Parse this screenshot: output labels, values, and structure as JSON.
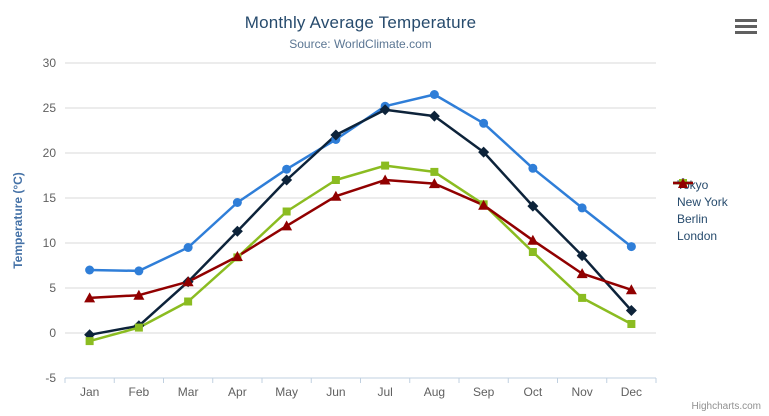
{
  "header": {
    "title": "Monthly Average Temperature",
    "subtitle": "Source: WorldClimate.com"
  },
  "credit": {
    "label": "Highcharts.com"
  },
  "chart_data": {
    "type": "line",
    "title": "Monthly Average Temperature",
    "subtitle": "Source: WorldClimate.com",
    "categories": [
      "Jan",
      "Feb",
      "Mar",
      "Apr",
      "May",
      "Jun",
      "Jul",
      "Aug",
      "Sep",
      "Oct",
      "Nov",
      "Dec"
    ],
    "series": [
      {
        "name": "Tokyo",
        "color": "#2f7ed8",
        "marker": "circle",
        "values": [
          7.0,
          6.9,
          9.5,
          14.5,
          18.2,
          21.5,
          25.2,
          26.5,
          23.3,
          18.3,
          13.9,
          9.6
        ]
      },
      {
        "name": "New York",
        "color": "#0d233a",
        "marker": "diamond",
        "values": [
          -0.2,
          0.8,
          5.7,
          11.3,
          17.0,
          22.0,
          24.8,
          24.1,
          20.1,
          14.1,
          8.6,
          2.5
        ]
      },
      {
        "name": "Berlin",
        "color": "#8bbc21",
        "marker": "square",
        "values": [
          -0.9,
          0.6,
          3.5,
          8.4,
          13.5,
          17.0,
          18.6,
          17.9,
          14.3,
          9.0,
          3.9,
          1.0
        ]
      },
      {
        "name": "London",
        "color": "#910000",
        "marker": "triangle",
        "values": [
          3.9,
          4.2,
          5.7,
          8.5,
          11.9,
          15.2,
          17.0,
          16.6,
          14.2,
          10.3,
          6.6,
          4.8
        ]
      }
    ],
    "xlabel": "",
    "ylabel": "Temperature (°C)",
    "ylim": [
      -5,
      30
    ],
    "ytick_interval": 5,
    "grid": true,
    "legend_position": "right",
    "colors": {
      "title": "#274b6d",
      "subtitle": "#5b7693",
      "axis_title": "#4572a7",
      "axis_labels": "#606060",
      "gridline": "#d8d8d8",
      "axis_line": "#c0d0e0",
      "tick": "#c0d0e0"
    }
  }
}
